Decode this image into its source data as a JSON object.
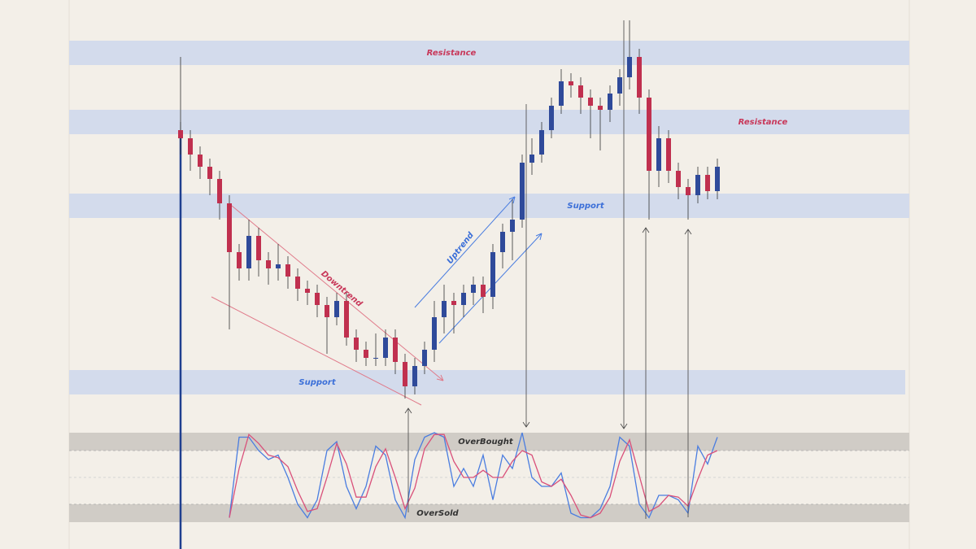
{
  "chart_data": {
    "type": "candlestick",
    "ylim": [
      0,
      100
    ],
    "open": [
      72,
      70,
      66,
      63,
      60,
      54,
      42,
      38,
      46,
      40,
      38,
      39,
      36,
      33,
      32,
      29,
      26,
      30,
      21,
      18,
      16,
      16,
      21,
      15,
      9,
      14,
      18,
      26,
      30,
      29,
      32,
      34,
      31,
      42,
      47,
      50,
      64,
      66,
      72,
      78,
      84,
      83,
      80,
      78,
      77,
      81,
      85,
      90,
      80,
      62,
      70,
      62,
      58,
      56,
      61,
      57
    ],
    "high": [
      74,
      72,
      68,
      65,
      62,
      56,
      44,
      50,
      48,
      42,
      44,
      41,
      38,
      35,
      34,
      31,
      32,
      32,
      23,
      20,
      22,
      23,
      23,
      17,
      16,
      20,
      30,
      34,
      32,
      34,
      36,
      36,
      44,
      49,
      55,
      66,
      70,
      74,
      80,
      87,
      86,
      85,
      82,
      80,
      83,
      87,
      99,
      92,
      82,
      73,
      72,
      64,
      60,
      63,
      63,
      65
    ],
    "low": [
      66,
      62,
      60,
      56,
      50,
      23,
      35,
      35,
      36,
      34,
      35,
      33,
      30,
      29,
      26,
      17,
      24,
      19,
      15,
      14,
      14,
      14,
      12,
      6,
      7,
      12,
      15,
      22,
      22,
      26,
      29,
      27,
      28,
      38,
      40,
      48,
      61,
      64,
      70,
      76,
      80,
      76,
      70,
      67,
      74,
      78,
      82,
      76,
      50,
      58,
      59,
      55,
      50,
      54,
      55,
      55
    ],
    "close": [
      70,
      66,
      63,
      60,
      54,
      42,
      38,
      46,
      40,
      38,
      39,
      36,
      33,
      32,
      29,
      26,
      30,
      21,
      18,
      16,
      16,
      21,
      15,
      9,
      14,
      18,
      26,
      30,
      29,
      32,
      34,
      31,
      42,
      47,
      50,
      64,
      66,
      72,
      78,
      84,
      83,
      80,
      78,
      77,
      81,
      85,
      90,
      80,
      62,
      70,
      62,
      58,
      56,
      61,
      57,
      63
    ],
    "up_color": "#2f4a9a",
    "down_color": "#c0304f",
    "zones": [
      {
        "label": "Resistance",
        "range": [
          88,
          94
        ],
        "color": "#d3dbec",
        "label_color": "#c8385a"
      },
      {
        "label": "Resistance",
        "range": [
          71,
          77
        ],
        "color": "#d3dbec",
        "label_color": "#c8385a"
      },
      {
        "label": "Support",
        "range": [
          50.4,
          56.4
        ],
        "color": "#d3dbec",
        "label_color": "#3b6fd8"
      },
      {
        "label": "Support",
        "range": [
          7,
          13
        ],
        "color": "#d3dbec",
        "label_color": "#3b6fd8"
      }
    ],
    "annotations": [
      "Downtrend",
      "Uptrend"
    ],
    "oscillator": {
      "type": "line",
      "ylim": [
        0,
        100
      ],
      "overbought": {
        "label": "OverBought",
        "range": [
          80,
          100
        ]
      },
      "oversold": {
        "label": "OverSold",
        "range": [
          0,
          20
        ]
      },
      "midline": 50,
      "series": [
        {
          "color": "#4a7de0",
          "values": [
            null,
            null,
            null,
            null,
            null,
            5,
            95,
            95,
            80,
            70,
            75,
            50,
            20,
            5,
            25,
            80,
            90,
            40,
            15,
            40,
            85,
            75,
            25,
            5,
            70,
            95,
            100,
            95,
            40,
            60,
            40,
            75,
            25,
            75,
            60,
            100,
            50,
            40,
            40,
            55,
            10,
            5,
            5,
            15,
            40,
            95,
            85,
            20,
            5,
            30,
            30,
            25,
            10,
            85,
            65,
            95
          ]
        },
        {
          "color": "#d9507a",
          "values": [
            null,
            null,
            null,
            null,
            null,
            5,
            60,
            98,
            88,
            75,
            72,
            62,
            35,
            12,
            15,
            50,
            88,
            65,
            28,
            28,
            62,
            82,
            50,
            15,
            38,
            82,
            98,
            98,
            68,
            50,
            50,
            58,
            50,
            50,
            68,
            80,
            75,
            45,
            40,
            48,
            30,
            8,
            5,
            10,
            28,
            68,
            92,
            52,
            12,
            18,
            30,
            28,
            18,
            48,
            75,
            80
          ]
        }
      ]
    }
  }
}
